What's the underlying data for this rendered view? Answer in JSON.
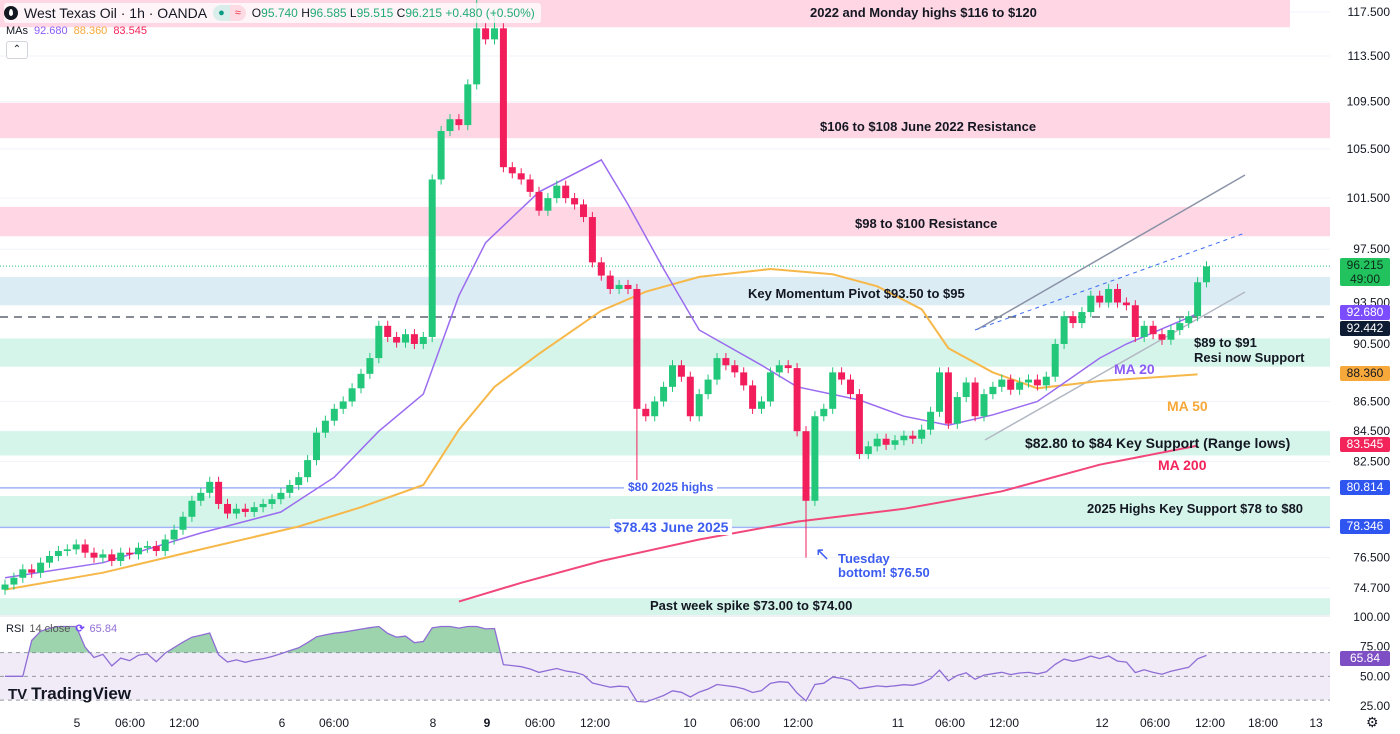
{
  "header": {
    "symbol": "West Texas Oil · 1h · OANDA",
    "open_label": "O",
    "open": "95.740",
    "high_label": "H",
    "high": "96.585",
    "low_label": "L",
    "low": "95.515",
    "close_label": "C",
    "close": "96.215",
    "change": "+0.480 (+0.50%)",
    "mas_label": "MAs",
    "ma_values": [
      "92.680",
      "88.360",
      "83.545"
    ],
    "collapse_icon": "chevron-up-icon"
  },
  "colors": {
    "up": "#22c77a",
    "down": "#f21d5b",
    "ma20": "#9b6cf0",
    "ma50": "#f7b84a",
    "ma200": "#f2477a",
    "pink_zone": "#ffd6e4",
    "blue_zone": "#dcecf5",
    "green_zone": "#d6f5ea",
    "level_line": "#9fb3f5",
    "rsi": "#8f6dd6",
    "rsi_band": "#f1ebf8"
  },
  "chart_data": {
    "type": "candlestick",
    "scale": "log",
    "ylim": [
      72.9,
      120.5
    ],
    "price_ticks": [
      "117.500",
      "113.500",
      "109.500",
      "105.500",
      "101.500",
      "97.500",
      "93.500",
      "90.500",
      "86.500",
      "84.500",
      "82.500",
      "76.500",
      "74.700"
    ],
    "time_ticks": [
      "5",
      "06:00",
      "12:00",
      "6",
      "06:00",
      "8",
      "9",
      "06:00",
      "12:00",
      "10",
      "06:00",
      "12:00",
      "11",
      "06:00",
      "12:00",
      "12",
      "06:00",
      "12:00",
      "18:00",
      "13"
    ],
    "closes": [
      74.9,
      75.3,
      75.8,
      75.6,
      76.2,
      76.6,
      76.9,
      77.0,
      77.3,
      76.8,
      76.5,
      76.7,
      76.3,
      76.8,
      76.7,
      77.1,
      77.2,
      76.9,
      77.6,
      78.2,
      79.0,
      80.0,
      80.5,
      81.2,
      79.8,
      79.2,
      79.5,
      79.3,
      79.6,
      79.8,
      80.1,
      80.5,
      81.0,
      81.5,
      82.6,
      84.4,
      85.2,
      86.0,
      86.5,
      87.4,
      88.4,
      89.5,
      91.8,
      91.0,
      90.6,
      91.2,
      90.5,
      91.0,
      103.0,
      107.0,
      108.0,
      107.5,
      111.0,
      116.0,
      115.0,
      116.0,
      104.0,
      103.5,
      103.0,
      102.0,
      100.5,
      101.5,
      102.5,
      101.5,
      101.0,
      100.0,
      96.5,
      95.5,
      94.5,
      94.8,
      94.5,
      86.0,
      85.5,
      86.5,
      87.5,
      89.0,
      88.2,
      85.5,
      87.0,
      88.0,
      89.5,
      89.0,
      88.5,
      87.6,
      86.0,
      86.5,
      88.5,
      89.0,
      88.8,
      84.5,
      80.0,
      85.5,
      86.0,
      88.5,
      88.0,
      87.0,
      83.0,
      83.5,
      84.0,
      83.6,
      83.9,
      84.2,
      84.0,
      84.6,
      85.8,
      88.5,
      85.0,
      86.8,
      87.8,
      85.5,
      87.0,
      87.5,
      88.0,
      87.3,
      87.8,
      88.0,
      87.6,
      88.2,
      90.5,
      92.5,
      92.0,
      92.8,
      94.0,
      93.5,
      94.5,
      93.5,
      93.3,
      91.0,
      91.8,
      91.2,
      90.8,
      91.5,
      92.0,
      92.5,
      95.0,
      96.2
    ],
    "notable_lows": {
      "71": 80.8,
      "90": 76.5
    },
    "notable_highs": {
      "53": 119.0,
      "55": 117.8
    },
    "ma20": [
      [
        0,
        75.3
      ],
      [
        11,
        76.2
      ],
      [
        22,
        78.0
      ],
      [
        31,
        79.3
      ],
      [
        37,
        81.5
      ],
      [
        42,
        84.5
      ],
      [
        47,
        87
      ],
      [
        51,
        94
      ],
      [
        54,
        98
      ],
      [
        60,
        102
      ],
      [
        67,
        104.6
      ],
      [
        70,
        101
      ],
      [
        74,
        96
      ],
      [
        78,
        91.5
      ],
      [
        85,
        89
      ],
      [
        89,
        87.5
      ],
      [
        96,
        86.6
      ],
      [
        101,
        85.5
      ],
      [
        106,
        84.9
      ],
      [
        111,
        85.6
      ],
      [
        116,
        86.5
      ],
      [
        123,
        89.5
      ],
      [
        126,
        90.5
      ],
      [
        134,
        92.68
      ]
    ],
    "ma50": [
      [
        0,
        74.6
      ],
      [
        11,
        75.6
      ],
      [
        22,
        77.0
      ],
      [
        33,
        78.4
      ],
      [
        40,
        79.6
      ],
      [
        47,
        81.0
      ],
      [
        51,
        84.6
      ],
      [
        55,
        87.5
      ],
      [
        60,
        89.8
      ],
      [
        67,
        92.9
      ],
      [
        72,
        94.3
      ],
      [
        78,
        95.4
      ],
      [
        86,
        96.0
      ],
      [
        93,
        95.6
      ],
      [
        98,
        94.7
      ],
      [
        103,
        93.0
      ],
      [
        106,
        90.2
      ],
      [
        111,
        88.5
      ],
      [
        116,
        87.4
      ],
      [
        123,
        87.9
      ],
      [
        134,
        88.36
      ]
    ],
    "ma200": [
      [
        51,
        73.9
      ],
      [
        58,
        75.0
      ],
      [
        67,
        76.3
      ],
      [
        78,
        77.6
      ],
      [
        89,
        78.7
      ],
      [
        101,
        79.5
      ],
      [
        112,
        80.6
      ],
      [
        123,
        82.3
      ],
      [
        134,
        83.545
      ]
    ],
    "zones": [
      {
        "label": "2022 and Monday highs $116 to $120",
        "range": [
          116.1,
          120.5
        ],
        "color": "pink"
      },
      {
        "label": "$106 to $108 June 2022 Resistance",
        "range": [
          106.4,
          109.4
        ],
        "color": "pink"
      },
      {
        "label": "$98 to $100 Resistance",
        "range": [
          98.5,
          100.8
        ],
        "color": "pink"
      },
      {
        "label": "Key Momentum Pivot $93.50 to $95",
        "range": [
          93.3,
          95.4
        ],
        "color": "blue"
      },
      {
        "label": "$89 to $91",
        "label2": "Resi now Support",
        "range": [
          88.9,
          90.9
        ],
        "color": "green"
      },
      {
        "label": "$82.80 to $84 Key Support (Range lows)",
        "range": [
          82.9,
          84.5
        ],
        "color": "green"
      },
      {
        "label": "2025 Highs Key Support $78 to $80",
        "range": [
          78.4,
          80.3
        ],
        "color": "green"
      },
      {
        "label": "Past week spike $73.00 to $74.00",
        "range": [
          72.9,
          74.1
        ],
        "color": "green"
      }
    ],
    "levels": [
      {
        "label": "$80 2025 highs",
        "price": 80.814
      },
      {
        "label": "$78.43 June 2025",
        "price": 78.346
      }
    ],
    "annotations": {
      "ma20": "MA 20",
      "ma50": "MA 50",
      "ma200": "MA 200",
      "tuesday": "Tuesday",
      "tuesday2": "bottom! $76.50"
    },
    "badges": {
      "last": "96.215",
      "countdown": "49:00",
      "ma20": "92.680",
      "prev": "92.442",
      "ma50": "88.360",
      "ma200": "83.545",
      "lvl1": "80.814",
      "lvl2": "78.346"
    }
  },
  "rsi": {
    "label": "RSI",
    "params": "14 close",
    "value": "65.84",
    "ticks": [
      "100.00",
      "75.00",
      "50.00",
      "25.00"
    ]
  },
  "branding": {
    "name": "TradingView"
  },
  "footer": {
    "settings_icon": "gear-icon"
  }
}
